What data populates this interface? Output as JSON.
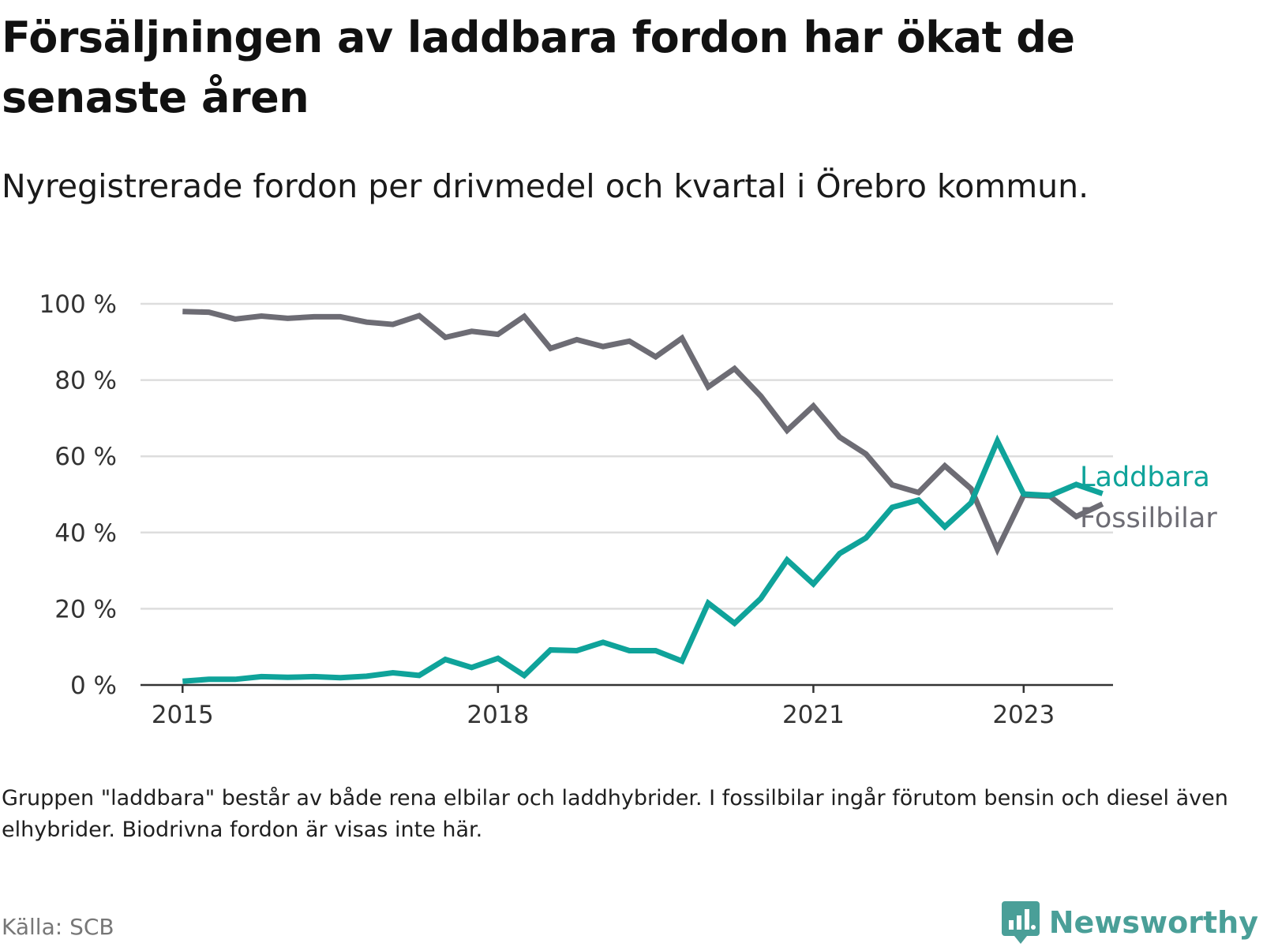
{
  "title": "Försäljningen av laddbara fordon har ökat de senaste åren",
  "subtitle": "Nyregistrerade fordon per drivmedel och kvartal i Örebro kommun.",
  "note": "Gruppen \"laddbara\" består av både rena elbilar och laddhybrider. I fossilbilar ingår förutom bensin och diesel även elhybrider. Biodrivna fordon är visas inte här.",
  "source": "Källa: SCB",
  "brand": {
    "name": "Newsworthy",
    "icon": "bar-chart-speech-bubble-icon"
  },
  "colors": {
    "laddbara": "#0fa39a",
    "fossil": "#6d6c74",
    "grid": "#dddddd",
    "axis": "#333333",
    "tick_text": "#333333"
  },
  "chart_data": {
    "type": "line",
    "title": "Försäljningen av laddbara fordon har ökat de senaste åren",
    "xlabel": "",
    "ylabel": "",
    "x_range": [
      2014.6,
      2023.85
    ],
    "ylim": [
      0,
      100
    ],
    "y_ticks": [
      0,
      20,
      40,
      60,
      80,
      100
    ],
    "y_tick_labels": [
      "0 %",
      "20 %",
      "40 %",
      "60 %",
      "80 %",
      "100 %"
    ],
    "x_ticks": [
      2015,
      2018,
      2021,
      2023
    ],
    "x_tick_labels": [
      "2015",
      "2018",
      "2021",
      "2023"
    ],
    "grid": true,
    "x": [
      2015.0,
      2015.25,
      2015.5,
      2015.75,
      2016.0,
      2016.25,
      2016.5,
      2016.75,
      2017.0,
      2017.25,
      2017.5,
      2017.75,
      2018.0,
      2018.25,
      2018.5,
      2018.75,
      2019.0,
      2019.25,
      2019.5,
      2019.75,
      2020.0,
      2020.25,
      2020.5,
      2020.75,
      2021.0,
      2021.25,
      2021.5,
      2021.75,
      2022.0,
      2022.25,
      2022.5,
      2022.75,
      2023.0,
      2023.25,
      2023.5,
      2023.75
    ],
    "series": [
      {
        "name": "Laddbara",
        "color": "#0fa39a",
        "values": [
          1,
          1.5,
          1.5,
          2.2,
          2.0,
          2.2,
          1.9,
          2.3,
          3.2,
          2.5,
          6.7,
          4.6,
          7.0,
          2.5,
          9.2,
          9.0,
          11.2,
          9.0,
          9.0,
          6.3,
          21.5,
          16.2,
          22.7,
          32.8,
          26.5,
          34.5,
          38.6,
          46.6,
          48.5,
          41.5,
          47.8,
          64.0,
          50.1,
          49.7,
          52.6,
          50.2
        ]
      },
      {
        "name": "Fossilbilar",
        "color": "#6d6c74",
        "values": [
          98,
          97.8,
          96.0,
          96.8,
          96.2,
          96.6,
          96.6,
          95.2,
          94.6,
          96.9,
          91.2,
          92.8,
          92.0,
          96.7,
          88.3,
          90.6,
          88.8,
          90.2,
          86.1,
          91.0,
          78.2,
          83.0,
          75.8,
          66.8,
          73.2,
          65.0,
          60.6,
          52.5,
          50.5,
          57.5,
          51.5,
          35.6,
          49.8,
          49.5,
          44.2,
          47.5
        ]
      }
    ]
  }
}
